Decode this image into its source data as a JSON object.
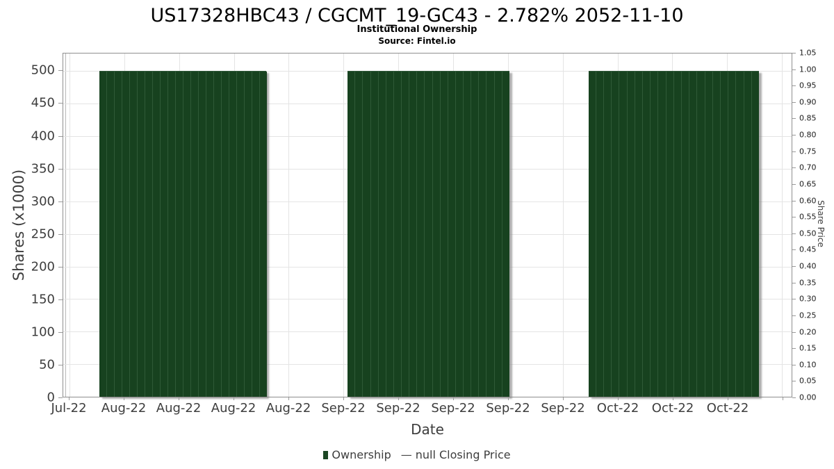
{
  "title": "US17328HBC43 / CGCMT_19-GC43 - 2.782% 2052-11-10",
  "subtitle": "Institutional Ownership",
  "source": "Source: Fintel.io",
  "chart_data": {
    "type": "bar",
    "title": "US17328HBC43 / CGCMT_19-GC43 - 2.782% 2052-11-10",
    "subtitle": "Institutional Ownership",
    "source": "Source: Fintel.io",
    "xlabel": "Date",
    "ylabel": "Shares (x1000)",
    "ylabel_right": "Share Price",
    "x_tick_labels": [
      "Jul-22",
      "Aug-22",
      "Aug-22",
      "Aug-22",
      "Aug-22",
      "Sep-22",
      "Sep-22",
      "Sep-22",
      "Sep-22",
      "Sep-22",
      "Oct-22",
      "Oct-22",
      "Oct-22"
    ],
    "y_ticks_left": [
      0,
      50,
      100,
      150,
      200,
      250,
      300,
      350,
      400,
      450,
      500
    ],
    "y_ticks_right": [
      "0.00",
      "0.05",
      "0.10",
      "0.15",
      "0.20",
      "0.25",
      "0.30",
      "0.35",
      "0.40",
      "0.45",
      "0.50",
      "0.55",
      "0.60",
      "0.65",
      "0.70",
      "0.75",
      "0.80",
      "0.85",
      "0.90",
      "0.95",
      "1.00",
      "1.05"
    ],
    "ylim_left": [
      0,
      527
    ],
    "ylim_right": [
      0,
      1.05
    ],
    "grid": true,
    "legend_position": "bottom",
    "series": [
      {
        "name": "Ownership",
        "type": "bar",
        "color": "#17421f",
        "groups": [
          {
            "period": "Aug-22",
            "value": 500,
            "bar_count": 22,
            "x_start_frac": 0.0495,
            "x_end_frac": 0.279
          },
          {
            "period": "Sep-22",
            "value": 500,
            "bar_count": 21,
            "x_start_frac": 0.3905,
            "x_end_frac": 0.6124
          },
          {
            "period": "Oct-22",
            "value": 500,
            "bar_count": 22,
            "x_start_frac": 0.721,
            "x_end_frac": 0.9552
          }
        ]
      },
      {
        "name": "null Closing Price",
        "type": "line",
        "values": null
      }
    ],
    "x_tick_first_frac": 0.0086,
    "x_tick_step_frac": 0.07524,
    "x_gridline_count": 14
  },
  "legend": {
    "ownership_label": "Ownership",
    "dash": "—",
    "price_label": "null Closing Price"
  },
  "colors": {
    "bar": "#17421f",
    "bar_edge": "#2f5a37",
    "grid": "#e4e4e4",
    "axis": "#8e8e8e",
    "text": "#3d3d3d",
    "title_text": "#000000"
  }
}
